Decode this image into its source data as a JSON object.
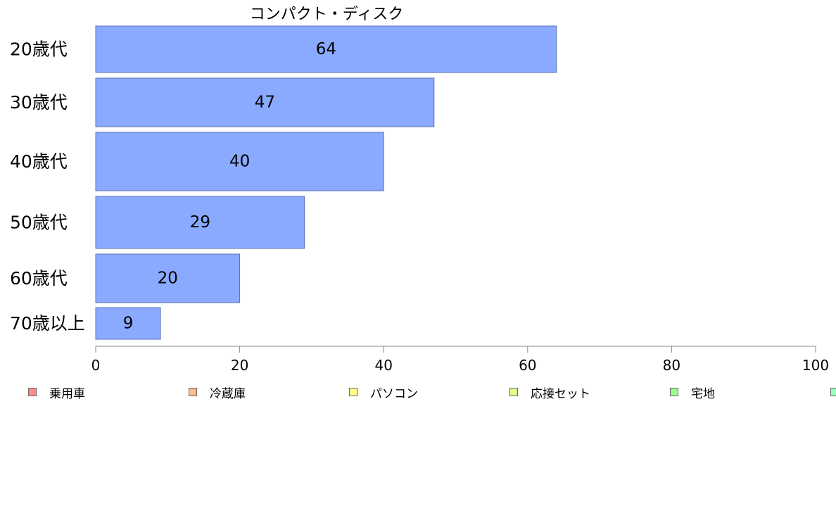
{
  "chart_data": {
    "type": "bar",
    "orientation": "horizontal",
    "title": "コンパクト・ディスク",
    "xlabel": "",
    "ylabel": "",
    "categories": [
      "20歳代",
      "30歳代",
      "40歳代",
      "50歳代",
      "60歳代",
      "70歳以上"
    ],
    "values": [
      64,
      47,
      40,
      29,
      20,
      9
    ],
    "data_labels": [
      "64",
      "47",
      "40",
      "29",
      "20",
      "9"
    ],
    "xlim": [
      0,
      100
    ],
    "x_ticks": [
      "0",
      "20",
      "40",
      "60",
      "80",
      "100"
    ],
    "grid": false,
    "bar_color": "#89aaff",
    "bar_border_color": "#5a73b8",
    "legend_position": "bottom",
    "legend": [
      {
        "label": "乗用車",
        "color": "#ff8a8a"
      },
      {
        "label": "冷蔵庫",
        "color": "#ffbb88"
      },
      {
        "label": "パソコン",
        "color": "#ffff88"
      },
      {
        "label": "応接セット",
        "color": "#ddff88"
      },
      {
        "label": "宅地",
        "color": "#99ff88"
      },
      {
        "label": "",
        "color": "#99ffbb"
      }
    ]
  }
}
